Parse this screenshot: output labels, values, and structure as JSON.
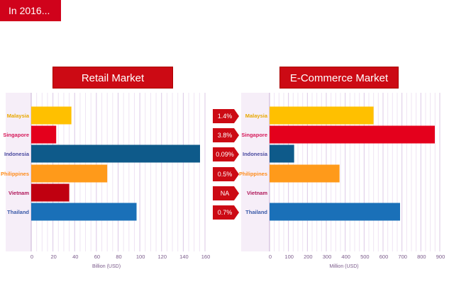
{
  "page": {
    "title": "In 2016..."
  },
  "shares": {
    "values": [
      "1.4%",
      "3.8%",
      "0.09%",
      "0.5%",
      "NA",
      "0.7%"
    ],
    "color": "#cc0a14"
  },
  "chart_data": [
    {
      "type": "bar",
      "orientation": "horizontal",
      "title": "Retail Market",
      "categories": [
        "Malaysia",
        "Singapore",
        "Indonesia",
        "Philippines",
        "Vietnam",
        "Thailand"
      ],
      "values": [
        37,
        23,
        158,
        70,
        35,
        97
      ],
      "colors": [
        "#ffc000",
        "#e4001c",
        "#0e5a8a",
        "#ff9a1a",
        "#c00010",
        "#1a70b8"
      ],
      "xlabel": "Billion (USD)",
      "xlim": [
        0,
        160
      ],
      "xticks": [
        0,
        20,
        40,
        60,
        80,
        100,
        120,
        140,
        160
      ],
      "grid": true
    },
    {
      "type": "bar",
      "orientation": "horizontal",
      "title": "E-Commerce Market",
      "categories": [
        "Malaysia",
        "Singapore",
        "Indonesia",
        "Philippines",
        "Vietnam",
        "Thailand"
      ],
      "values": [
        550,
        915,
        130,
        370,
        null,
        690
      ],
      "colors": [
        "#ffc000",
        "#e4001c",
        "#0e5a8a",
        "#ff9a1a",
        "#c00010",
        "#1a70b8"
      ],
      "xlabel": "Million (USD)",
      "xlim": [
        0,
        900
      ],
      "xticks": [
        0,
        100,
        200,
        300,
        400,
        500,
        600,
        700,
        800,
        900
      ],
      "grid": true
    }
  ],
  "label_colors": {
    "Malaysia": "#e8a800",
    "Singapore": "#d61a5a",
    "Indonesia": "#4a4aa0",
    "Philippines": "#ff8c1a",
    "Vietnam": "#b0185a",
    "Thailand": "#3a5aa8"
  }
}
